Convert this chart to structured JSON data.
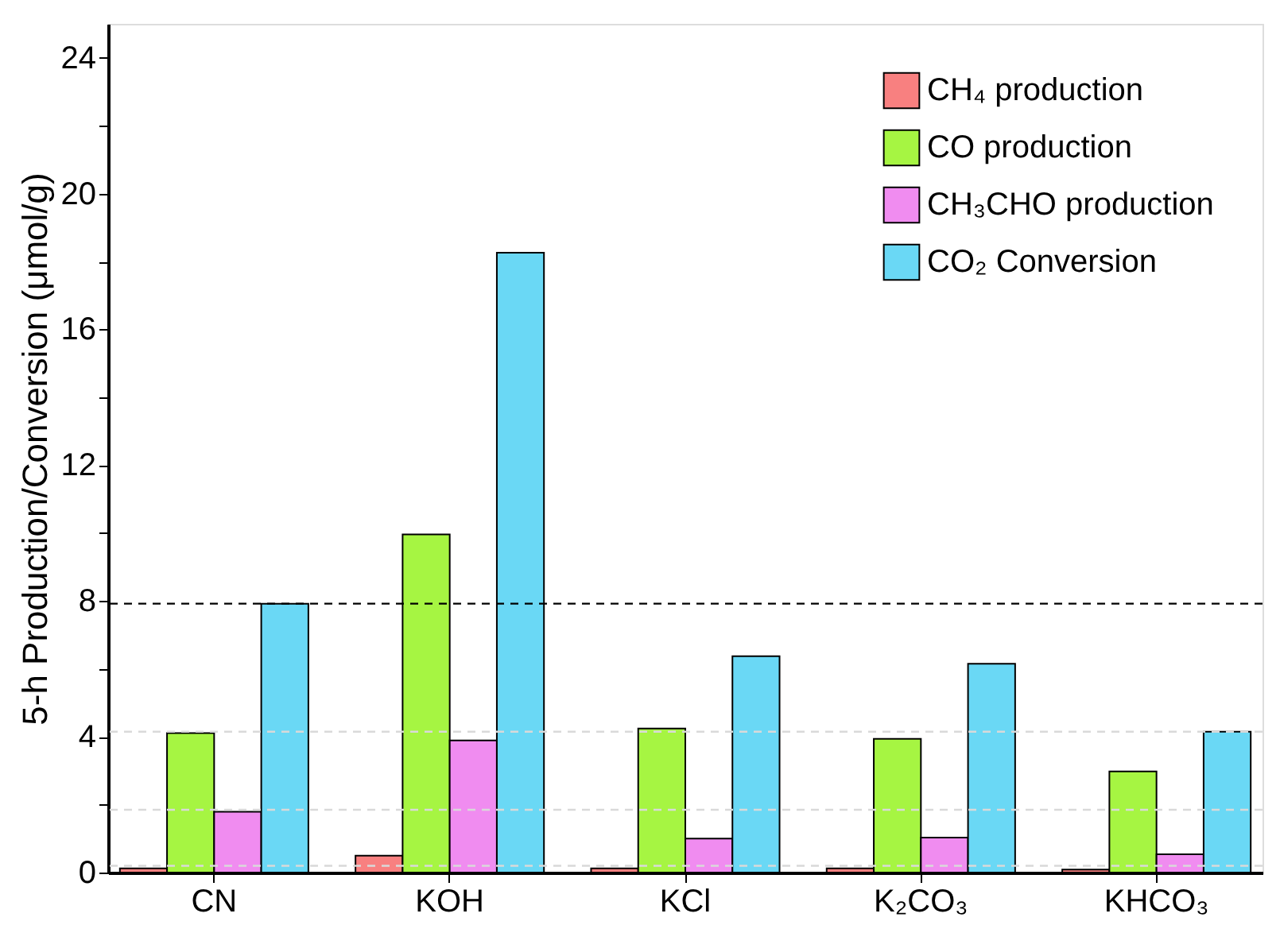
{
  "chart_data": {
    "type": "bar",
    "ylabel": "5-h Production/Conversion (μmol/g)",
    "categories": [
      "CN",
      "KOH",
      "KCl",
      "K₂CO₃",
      "KHCO₃"
    ],
    "series": [
      {
        "name": "CH₄ production",
        "color": "#f88080",
        "values": [
          0.12,
          0.5,
          0.12,
          0.12,
          0.09
        ]
      },
      {
        "name": "CO production",
        "color": "#a6f542",
        "values": [
          4.11,
          9.96,
          4.24,
          3.94,
          2.98
        ]
      },
      {
        "name": "CH₃CHO production",
        "color": "#f08cf0",
        "values": [
          1.79,
          3.89,
          1.0,
          1.03,
          0.54
        ]
      },
      {
        "name": "CO₂ Conversion",
        "color": "#6ad8f5",
        "values": [
          7.92,
          18.26,
          6.37,
          6.15,
          4.15
        ]
      }
    ],
    "ylim": [
      0,
      25
    ],
    "yticks": [
      0,
      {
        "value": 2,
        "label": null
      },
      4,
      {
        "value": 6,
        "label": null
      },
      8,
      {
        "value": 10,
        "label": null
      },
      12,
      {
        "value": 14,
        "label": null
      },
      16,
      {
        "value": 18,
        "label": null
      },
      20,
      {
        "value": 22,
        "label": null
      },
      24
    ],
    "ref_lines": [
      {
        "axis": "y",
        "value": 7.92,
        "color": "#000000",
        "line_style": "dashed"
      },
      {
        "axis": "y",
        "value": 4.15,
        "color": "#d9d9d9",
        "line_style": "dashed"
      },
      {
        "axis": "y",
        "value": 1.85,
        "color": "#d9d9d9",
        "line_style": "dashed"
      },
      {
        "axis": "y",
        "value": 0.2,
        "color": "#d9d9d9",
        "line_style": "dashed"
      }
    ],
    "grid": false,
    "legend": "top right"
  }
}
